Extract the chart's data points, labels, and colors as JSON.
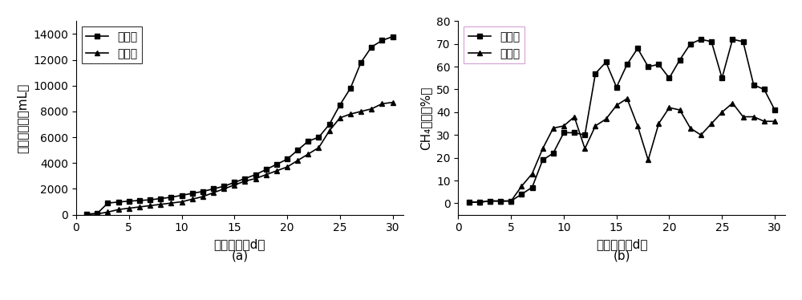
{
  "left": {
    "title_x": "(a)",
    "xlabel": "发酵天数（d）",
    "ylabel": "累积产气量（mL）",
    "xlim": [
      0,
      31
    ],
    "ylim": [
      0,
      15000
    ],
    "yticks": [
      0,
      2000,
      4000,
      6000,
      8000,
      10000,
      12000,
      14000
    ],
    "xticks": [
      0,
      5,
      10,
      15,
      20,
      25,
      30
    ],
    "shishi_x": [
      1,
      2,
      3,
      4,
      5,
      6,
      7,
      8,
      9,
      10,
      11,
      12,
      13,
      14,
      15,
      16,
      17,
      18,
      19,
      20,
      21,
      22,
      23,
      24,
      25,
      26,
      27,
      28,
      29,
      30
    ],
    "shishi_y": [
      50,
      100,
      900,
      980,
      1050,
      1100,
      1150,
      1250,
      1350,
      1500,
      1650,
      1800,
      2000,
      2200,
      2500,
      2800,
      3100,
      3500,
      3900,
      4300,
      5000,
      5700,
      6000,
      7000,
      8500,
      9800,
      11800,
      13000,
      13500,
      13800
    ],
    "duizhao_x": [
      1,
      2,
      3,
      4,
      5,
      6,
      7,
      8,
      9,
      10,
      11,
      12,
      13,
      14,
      15,
      16,
      17,
      18,
      19,
      20,
      21,
      22,
      23,
      24,
      25,
      26,
      27,
      28,
      29,
      30
    ],
    "duizhao_y": [
      30,
      60,
      200,
      400,
      500,
      600,
      700,
      800,
      900,
      1000,
      1200,
      1400,
      1700,
      2000,
      2300,
      2600,
      2800,
      3100,
      3400,
      3700,
      4200,
      4700,
      5200,
      6500,
      7500,
      7800,
      8000,
      8200,
      8600,
      8700
    ],
    "legend_shishi": "实施组",
    "legend_duizhao": "对照组"
  },
  "right": {
    "title_x": "(b)",
    "xlabel": "发酵天数（d）",
    "ylabel": "CH₄含量（%）",
    "xlim": [
      0,
      31
    ],
    "ylim": [
      -5,
      80
    ],
    "yticks": [
      0,
      10,
      20,
      30,
      40,
      50,
      60,
      70,
      80
    ],
    "xticks": [
      0,
      5,
      10,
      15,
      20,
      25,
      30
    ],
    "shishi_x": [
      1,
      2,
      3,
      4,
      5,
      6,
      7,
      8,
      9,
      10,
      11,
      12,
      13,
      14,
      15,
      16,
      17,
      18,
      19,
      20,
      21,
      22,
      23,
      24,
      25,
      26,
      27,
      28,
      29,
      30
    ],
    "shishi_y": [
      0.5,
      0.5,
      1,
      1,
      1,
      4,
      7,
      19,
      22,
      31,
      31,
      30,
      57,
      62,
      51,
      61,
      68,
      60,
      61,
      55,
      63,
      70,
      72,
      71,
      55,
      72,
      71,
      52,
      50,
      41
    ],
    "duizhao_x": [
      1,
      2,
      3,
      4,
      5,
      6,
      7,
      8,
      9,
      10,
      11,
      12,
      13,
      14,
      15,
      16,
      17,
      18,
      19,
      20,
      21,
      22,
      23,
      24,
      25,
      26,
      27,
      28,
      29,
      30
    ],
    "duizhao_y": [
      0.5,
      0.5,
      1,
      1,
      1,
      7.5,
      13,
      24,
      33,
      34,
      38,
      24,
      34,
      37,
      43,
      46,
      34,
      19,
      35,
      42,
      41,
      33,
      30,
      35,
      40,
      44,
      38,
      38,
      36,
      36
    ],
    "legend_shishi": "实施组",
    "legend_duizhao": "对照组"
  },
  "line_color": "#000000",
  "marker_square": "s",
  "marker_triangle": "^",
  "marker_size": 5,
  "line_width": 1.2,
  "font_size_label": 11,
  "font_size_tick": 10,
  "font_size_legend": 10,
  "font_size_title": 11,
  "legend_border_left": "#000000",
  "legend_border_right": "#cc88cc"
}
